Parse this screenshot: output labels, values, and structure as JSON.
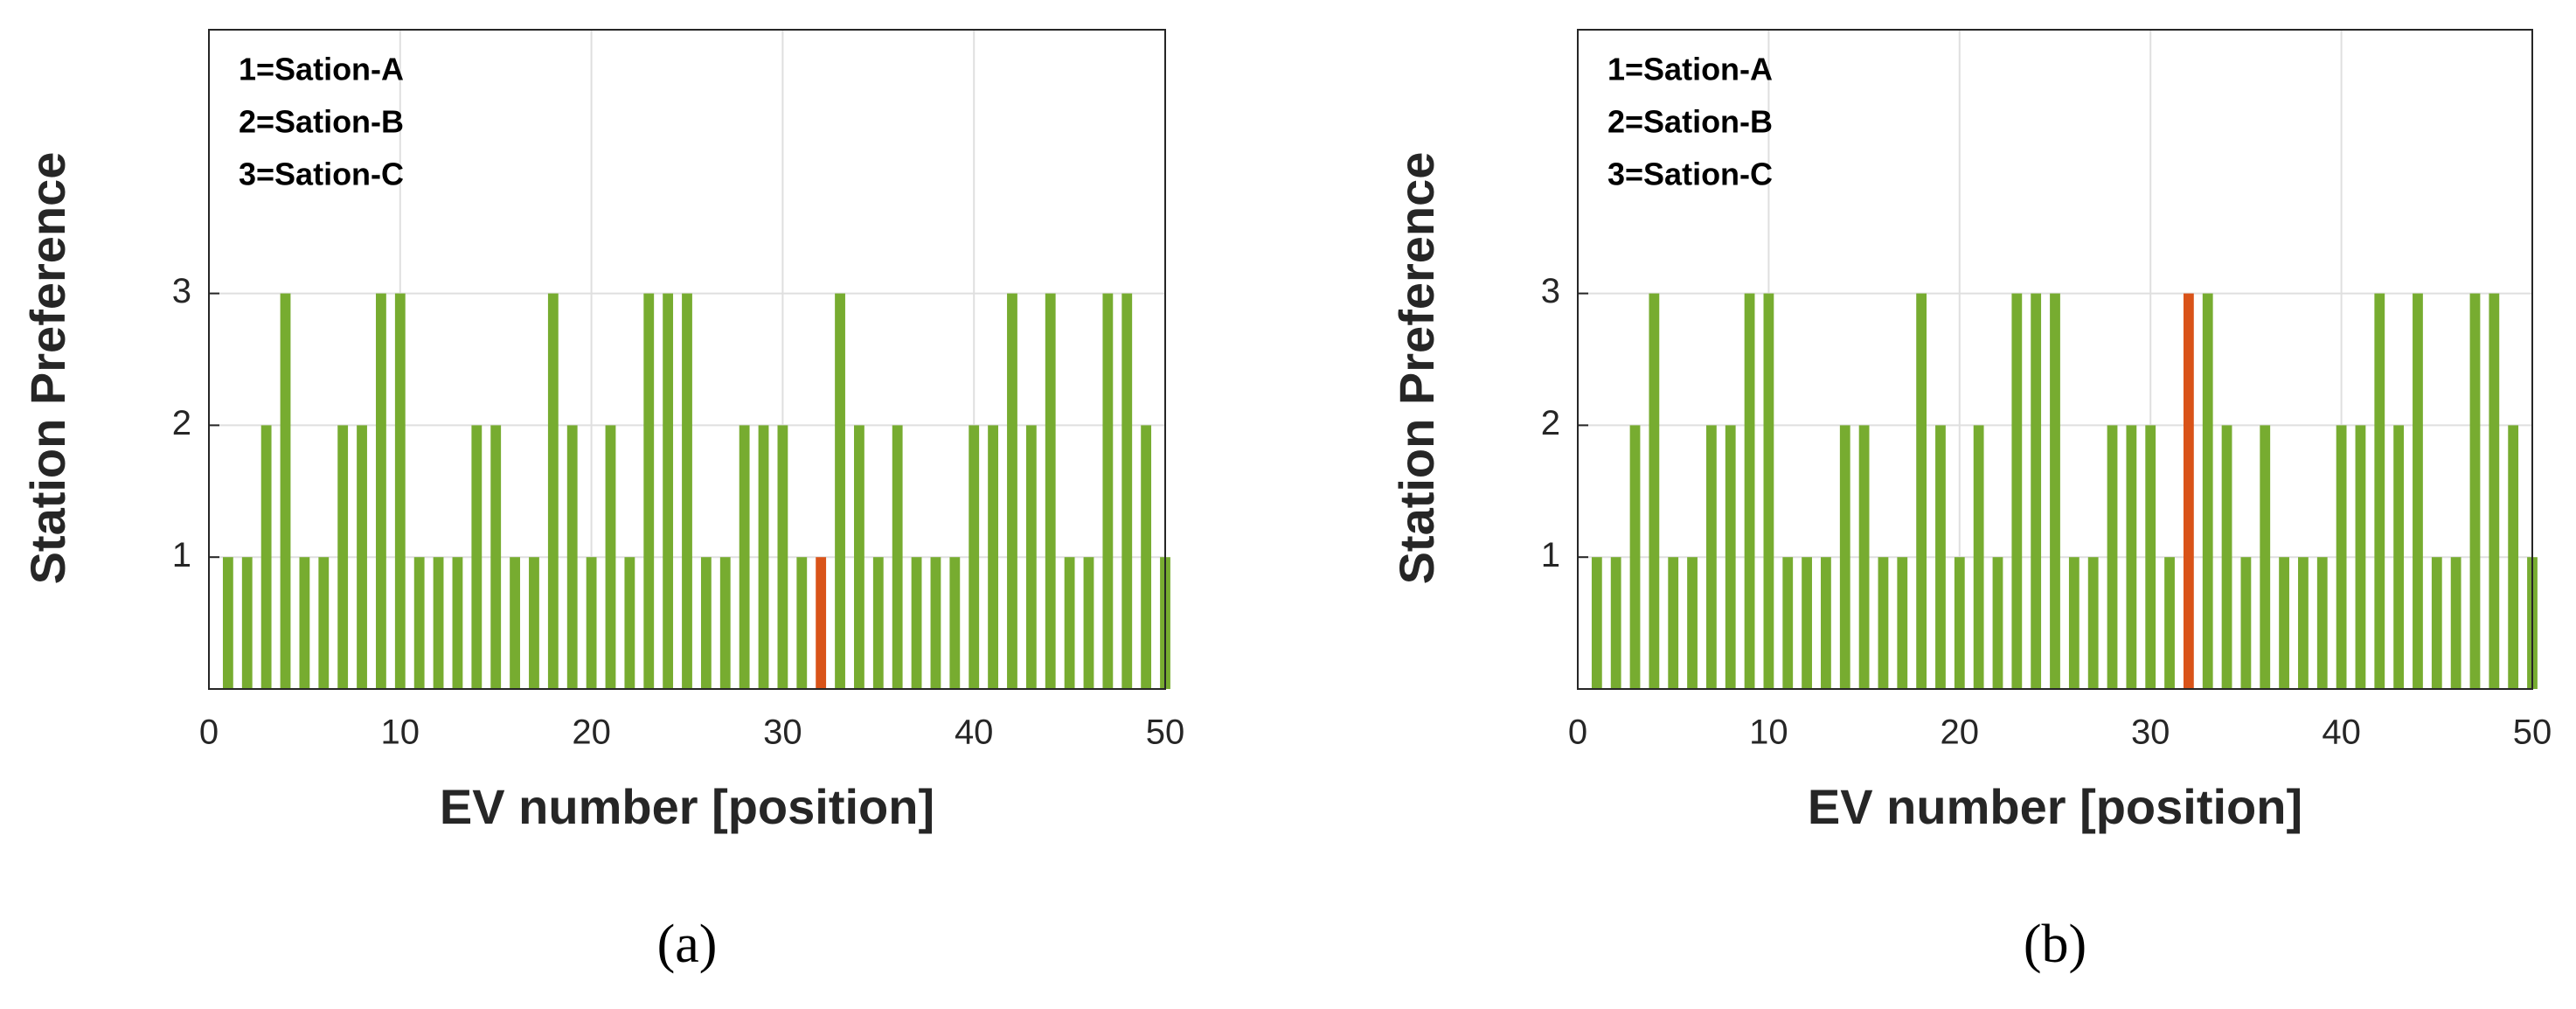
{
  "chart_data": [
    {
      "type": "bar",
      "caption": "(a)",
      "xlabel": "EV number [position]",
      "ylabel": "Station Preference",
      "annotations": [
        "1=Sation-A",
        "2=Sation-B",
        "3=Sation-C"
      ],
      "x": [
        1,
        2,
        3,
        4,
        5,
        6,
        7,
        8,
        9,
        10,
        11,
        12,
        13,
        14,
        15,
        16,
        17,
        18,
        19,
        20,
        21,
        22,
        23,
        24,
        25,
        26,
        27,
        28,
        29,
        30,
        31,
        32,
        33,
        34,
        35,
        36,
        37,
        38,
        39,
        40,
        41,
        42,
        43,
        44,
        45,
        46,
        47,
        48,
        49,
        50
      ],
      "values": [
        1,
        1,
        2,
        3,
        1,
        1,
        2,
        2,
        3,
        3,
        1,
        1,
        1,
        2,
        2,
        1,
        1,
        3,
        2,
        1,
        2,
        1,
        3,
        3,
        3,
        1,
        1,
        2,
        2,
        2,
        1,
        1,
        3,
        2,
        1,
        2,
        1,
        1,
        1,
        2,
        2,
        3,
        2,
        3,
        1,
        1,
        3,
        3,
        2,
        1
      ],
      "colors": [
        "#77ac30",
        "#77ac30",
        "#77ac30",
        "#77ac30",
        "#77ac30",
        "#77ac30",
        "#77ac30",
        "#77ac30",
        "#77ac30",
        "#77ac30",
        "#77ac30",
        "#77ac30",
        "#77ac30",
        "#77ac30",
        "#77ac30",
        "#77ac30",
        "#77ac30",
        "#77ac30",
        "#77ac30",
        "#77ac30",
        "#77ac30",
        "#77ac30",
        "#77ac30",
        "#77ac30",
        "#77ac30",
        "#77ac30",
        "#77ac30",
        "#77ac30",
        "#77ac30",
        "#77ac30",
        "#77ac30",
        "#d95319",
        "#77ac30",
        "#77ac30",
        "#77ac30",
        "#77ac30",
        "#77ac30",
        "#77ac30",
        "#77ac30",
        "#77ac30",
        "#77ac30",
        "#77ac30",
        "#77ac30",
        "#77ac30",
        "#77ac30",
        "#77ac30",
        "#77ac30",
        "#77ac30",
        "#77ac30",
        "#77ac30"
      ],
      "xlim": [
        0,
        50
      ],
      "xticks": [
        0,
        10,
        20,
        30,
        40,
        50
      ],
      "ylim": [
        0,
        5
      ],
      "yticks": [
        1,
        2,
        3
      ],
      "grid": true
    },
    {
      "type": "bar",
      "caption": "(b)",
      "xlabel": "EV number [position]",
      "ylabel": "Station Preference",
      "annotations": [
        "1=Sation-A",
        "2=Sation-B",
        "3=Sation-C"
      ],
      "x": [
        1,
        2,
        3,
        4,
        5,
        6,
        7,
        8,
        9,
        10,
        11,
        12,
        13,
        14,
        15,
        16,
        17,
        18,
        19,
        20,
        21,
        22,
        23,
        24,
        25,
        26,
        27,
        28,
        29,
        30,
        31,
        32,
        33,
        34,
        35,
        36,
        37,
        38,
        39,
        40,
        41,
        42,
        43,
        44,
        45,
        46,
        47,
        48,
        49,
        50
      ],
      "values": [
        1,
        1,
        2,
        3,
        1,
        1,
        2,
        2,
        3,
        3,
        1,
        1,
        1,
        2,
        2,
        1,
        1,
        3,
        2,
        1,
        2,
        1,
        3,
        3,
        3,
        1,
        1,
        2,
        2,
        2,
        1,
        3,
        3,
        2,
        1,
        2,
        1,
        1,
        1,
        2,
        2,
        3,
        2,
        3,
        1,
        1,
        3,
        3,
        2,
        1
      ],
      "colors": [
        "#77ac30",
        "#77ac30",
        "#77ac30",
        "#77ac30",
        "#77ac30",
        "#77ac30",
        "#77ac30",
        "#77ac30",
        "#77ac30",
        "#77ac30",
        "#77ac30",
        "#77ac30",
        "#77ac30",
        "#77ac30",
        "#77ac30",
        "#77ac30",
        "#77ac30",
        "#77ac30",
        "#77ac30",
        "#77ac30",
        "#77ac30",
        "#77ac30",
        "#77ac30",
        "#77ac30",
        "#77ac30",
        "#77ac30",
        "#77ac30",
        "#77ac30",
        "#77ac30",
        "#77ac30",
        "#77ac30",
        "#d95319",
        "#77ac30",
        "#77ac30",
        "#77ac30",
        "#77ac30",
        "#77ac30",
        "#77ac30",
        "#77ac30",
        "#77ac30",
        "#77ac30",
        "#77ac30",
        "#77ac30",
        "#77ac30",
        "#77ac30",
        "#77ac30",
        "#77ac30",
        "#77ac30",
        "#77ac30",
        "#77ac30"
      ],
      "xlim": [
        0,
        50
      ],
      "xticks": [
        0,
        10,
        20,
        30,
        40,
        50
      ],
      "ylim": [
        0,
        5
      ],
      "yticks": [
        1,
        2,
        3
      ],
      "grid": true
    }
  ]
}
